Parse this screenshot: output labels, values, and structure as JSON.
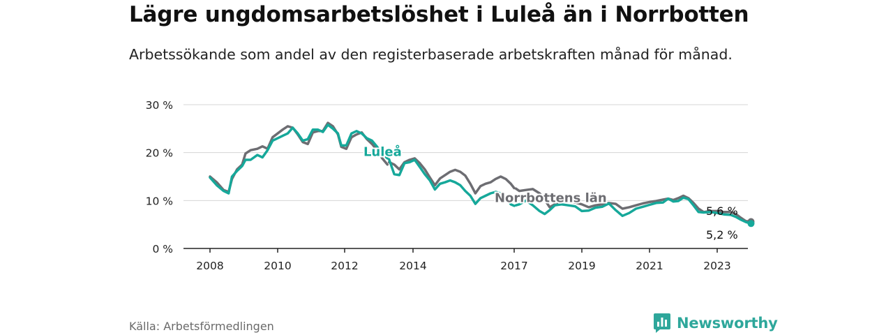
{
  "title": "Lägre ungdomsarbetslöshet i Luleå än i Norrbotten",
  "subtitle": "Arbetssökande som andel av den registerbaserade arbetskraften månad för månad.",
  "source": "Källa: Arbetsförmedlingen",
  "brand": {
    "name": "Newsworthy",
    "icon": "bar-chart-logo-icon",
    "color": "#2ea79b"
  },
  "colors": {
    "lulea": "#16a89a",
    "norrbotten": "#6d6d72",
    "grid": "#d4d4d4",
    "axis": "#222222"
  },
  "chart_data": {
    "type": "line",
    "title": "Lägre ungdomsarbetslöshet i Luleå än i Norrbotten",
    "ylabel": "",
    "xlabel": "",
    "ylim": [
      0,
      30
    ],
    "xlim": [
      2007.6,
      2023.9
    ],
    "y_ticks": [
      {
        "value": 0,
        "label": "0 %"
      },
      {
        "value": 10,
        "label": "10 %"
      },
      {
        "value": 20,
        "label": "20 %"
      },
      {
        "value": 30,
        "label": "30 %"
      }
    ],
    "x_ticks": [
      {
        "value": 2008,
        "label": "2008"
      },
      {
        "value": 2010,
        "label": "2010"
      },
      {
        "value": 2012,
        "label": "2012"
      },
      {
        "value": 2014,
        "label": "2014"
      },
      {
        "value": 2017,
        "label": "2017"
      },
      {
        "value": 2019,
        "label": "2019"
      },
      {
        "value": 2021,
        "label": "2021"
      },
      {
        "value": 2023,
        "label": "2023"
      }
    ],
    "series": [
      {
        "name": "Norrbottens län",
        "label": "Norrbottens län",
        "color": "#6d6d72",
        "end_label": "5,6 %",
        "points": [
          [
            2008.0,
            15.0
          ],
          [
            2008.2,
            13.8
          ],
          [
            2008.4,
            12.2
          ],
          [
            2008.55,
            11.8
          ],
          [
            2008.65,
            14.5
          ],
          [
            2008.8,
            16.5
          ],
          [
            2008.95,
            17.5
          ],
          [
            2009.05,
            19.8
          ],
          [
            2009.2,
            20.5
          ],
          [
            2009.4,
            20.8
          ],
          [
            2009.55,
            21.3
          ],
          [
            2009.7,
            20.8
          ],
          [
            2009.85,
            23.2
          ],
          [
            2010.0,
            24.0
          ],
          [
            2010.15,
            24.8
          ],
          [
            2010.3,
            25.5
          ],
          [
            2010.45,
            25.2
          ],
          [
            2010.6,
            23.8
          ],
          [
            2010.75,
            22.2
          ],
          [
            2010.9,
            21.8
          ],
          [
            2011.05,
            24.2
          ],
          [
            2011.2,
            24.5
          ],
          [
            2011.35,
            24.5
          ],
          [
            2011.5,
            26.2
          ],
          [
            2011.65,
            25.5
          ],
          [
            2011.8,
            23.8
          ],
          [
            2011.9,
            21.2
          ],
          [
            2012.05,
            20.8
          ],
          [
            2012.2,
            23.2
          ],
          [
            2012.35,
            23.8
          ],
          [
            2012.5,
            24.2
          ],
          [
            2012.65,
            22.8
          ],
          [
            2012.8,
            21.8
          ],
          [
            2012.95,
            20.5
          ],
          [
            2013.1,
            18.8
          ],
          [
            2013.25,
            17.5
          ]
        ],
        "points_2": [
          [
            2013.3,
            18.0
          ],
          [
            2013.45,
            17.5
          ],
          [
            2013.6,
            16.5
          ],
          [
            2013.75,
            18.0
          ],
          [
            2013.9,
            18.5
          ],
          [
            2014.05,
            18.8
          ],
          [
            2014.2,
            17.8
          ],
          [
            2014.35,
            16.5
          ],
          [
            2014.5,
            14.8
          ],
          [
            2014.65,
            13.2
          ],
          [
            2014.8,
            14.6
          ],
          [
            2014.95,
            15.3
          ],
          [
            2015.1,
            16.0
          ],
          [
            2015.25,
            16.4
          ],
          [
            2015.4,
            16.0
          ],
          [
            2015.55,
            15.2
          ],
          [
            2015.7,
            13.5
          ],
          [
            2015.85,
            11.5
          ],
          [
            2016.0,
            13.0
          ],
          [
            2016.15,
            13.5
          ],
          [
            2016.3,
            13.8
          ],
          [
            2016.45,
            14.5
          ],
          [
            2016.6,
            15.0
          ],
          [
            2016.75,
            14.5
          ],
          [
            2016.9,
            13.5
          ],
          [
            2017.0,
            12.6
          ]
        ],
        "points_3": [
          [
            2017.05,
            12.5
          ],
          [
            2017.15,
            12.0
          ],
          [
            2017.35,
            12.2
          ],
          [
            2017.55,
            12.4
          ],
          [
            2017.75,
            11.5
          ],
          [
            2017.9,
            10.2
          ],
          [
            2018.05,
            8.6
          ],
          [
            2018.2,
            9.2
          ],
          [
            2018.4,
            10.2
          ],
          [
            2018.6,
            9.8
          ],
          [
            2018.8,
            9.6
          ],
          [
            2019.0,
            9.2
          ],
          [
            2019.2,
            8.6
          ],
          [
            2019.4,
            9.0
          ],
          [
            2019.6,
            9.2
          ],
          [
            2019.8,
            9.5
          ],
          [
            2020.0,
            9.3
          ],
          [
            2020.2,
            8.3
          ],
          [
            2020.4,
            8.6
          ],
          [
            2020.6,
            9.0
          ],
          [
            2020.8,
            9.4
          ],
          [
            2021.0,
            9.7
          ],
          [
            2021.2,
            9.9
          ],
          [
            2021.4,
            10.2
          ],
          [
            2021.55,
            10.4
          ],
          [
            2021.7,
            10.1
          ],
          [
            2021.85,
            10.5
          ],
          [
            2022.0,
            11.0
          ],
          [
            2022.15,
            10.5
          ],
          [
            2022.3,
            9.5
          ],
          [
            2022.45,
            8.3
          ],
          [
            2022.6,
            7.6
          ],
          [
            2022.8,
            7.8
          ],
          [
            2023.0,
            7.8
          ],
          [
            2023.2,
            7.6
          ],
          [
            2023.4,
            7.6
          ],
          [
            2023.55,
            7.2
          ],
          [
            2023.7,
            6.4
          ],
          [
            2023.85,
            5.7
          ],
          [
            2024.0,
            5.6
          ]
        ]
      },
      {
        "name": "Luleå",
        "label": "Luleå",
        "color": "#16a89a",
        "end_label": "5,2 %",
        "points": [
          [
            2008.0,
            14.8
          ],
          [
            2008.2,
            13.2
          ],
          [
            2008.4,
            12.0
          ],
          [
            2008.55,
            11.5
          ],
          [
            2008.65,
            15.0
          ],
          [
            2008.8,
            16.2
          ],
          [
            2008.95,
            17.2
          ],
          [
            2009.05,
            18.5
          ],
          [
            2009.2,
            18.5
          ],
          [
            2009.4,
            19.5
          ],
          [
            2009.55,
            19.0
          ],
          [
            2009.7,
            20.5
          ],
          [
            2009.85,
            22.5
          ],
          [
            2010.0,
            23.0
          ],
          [
            2010.15,
            23.5
          ],
          [
            2010.3,
            24.0
          ],
          [
            2010.45,
            25.2
          ],
          [
            2010.6,
            24.0
          ],
          [
            2010.75,
            22.5
          ],
          [
            2010.9,
            22.8
          ],
          [
            2011.05,
            24.8
          ],
          [
            2011.2,
            24.8
          ],
          [
            2011.35,
            24.3
          ],
          [
            2011.5,
            25.8
          ],
          [
            2011.65,
            25.0
          ],
          [
            2011.8,
            24.0
          ],
          [
            2011.9,
            21.5
          ],
          [
            2012.05,
            21.5
          ],
          [
            2012.2,
            24.0
          ],
          [
            2012.35,
            24.5
          ],
          [
            2012.5,
            24.0
          ],
          [
            2012.65,
            23.0
          ],
          [
            2012.8,
            22.5
          ],
          [
            2012.95,
            21.2
          ],
          [
            2013.1,
            19.8
          ],
          [
            2013.25,
            18.8
          ]
        ],
        "points_2": [
          [
            2013.3,
            18.6
          ],
          [
            2013.45,
            15.5
          ],
          [
            2013.6,
            15.3
          ],
          [
            2013.75,
            17.8
          ],
          [
            2013.9,
            18.0
          ],
          [
            2014.05,
            18.5
          ],
          [
            2014.2,
            17.0
          ],
          [
            2014.35,
            15.5
          ],
          [
            2014.5,
            14.2
          ],
          [
            2014.65,
            12.3
          ],
          [
            2014.8,
            13.5
          ],
          [
            2014.95,
            13.8
          ],
          [
            2015.1,
            14.2
          ],
          [
            2015.25,
            13.8
          ],
          [
            2015.4,
            13.2
          ],
          [
            2015.55,
            12.0
          ],
          [
            2015.7,
            11.0
          ],
          [
            2015.85,
            9.3
          ],
          [
            2016.0,
            10.5
          ],
          [
            2016.15,
            11.0
          ],
          [
            2016.3,
            11.5
          ],
          [
            2016.45,
            11.8
          ],
          [
            2016.6,
            11.5
          ],
          [
            2016.75,
            10.8
          ],
          [
            2016.9,
            9.2
          ],
          [
            2017.0,
            8.9
          ]
        ],
        "points_3": [
          [
            2017.05,
            9.0
          ],
          [
            2017.15,
            9.2
          ],
          [
            2017.35,
            10.0
          ],
          [
            2017.55,
            9.0
          ],
          [
            2017.75,
            7.8
          ],
          [
            2017.9,
            7.2
          ],
          [
            2018.05,
            8.0
          ],
          [
            2018.2,
            9.0
          ],
          [
            2018.4,
            9.2
          ],
          [
            2018.6,
            9.0
          ],
          [
            2018.8,
            8.8
          ],
          [
            2019.0,
            7.8
          ],
          [
            2019.2,
            7.9
          ],
          [
            2019.4,
            8.5
          ],
          [
            2019.6,
            8.7
          ],
          [
            2019.8,
            9.4
          ],
          [
            2020.0,
            8.0
          ],
          [
            2020.2,
            6.8
          ],
          [
            2020.4,
            7.4
          ],
          [
            2020.6,
            8.3
          ],
          [
            2020.8,
            8.7
          ],
          [
            2021.0,
            9.1
          ],
          [
            2021.2,
            9.5
          ],
          [
            2021.4,
            9.6
          ],
          [
            2021.55,
            10.4
          ],
          [
            2021.7,
            9.8
          ],
          [
            2021.85,
            9.9
          ],
          [
            2022.0,
            10.6
          ],
          [
            2022.15,
            10.3
          ],
          [
            2022.3,
            9.0
          ],
          [
            2022.45,
            7.6
          ],
          [
            2022.6,
            7.5
          ],
          [
            2022.8,
            7.6
          ],
          [
            2023.0,
            7.4
          ],
          [
            2023.2,
            7.1
          ],
          [
            2023.4,
            7.0
          ],
          [
            2023.55,
            6.6
          ],
          [
            2023.7,
            6.0
          ],
          [
            2023.85,
            5.5
          ],
          [
            2024.0,
            5.2
          ]
        ]
      }
    ]
  }
}
